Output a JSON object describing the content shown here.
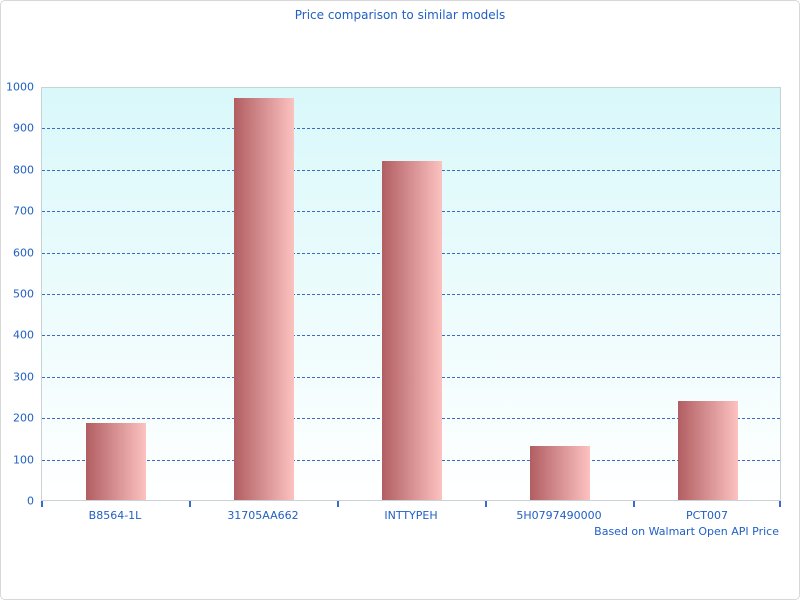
{
  "title": "Price comparison to similar models",
  "footer": "Based on Walmart Open API Price",
  "colors": {
    "text_blue": "#2160c4",
    "gridline_blue": "#3a6bca",
    "plot_border": "#c9d2d7",
    "plot_bg_top": "#d9f8fa",
    "plot_bg_bottom": "#ffffff",
    "bar_gradient_left": "#b15e62",
    "bar_gradient_right": "#fcc2c0",
    "window_border": "#d8d8d8"
  },
  "chart_data": {
    "type": "bar",
    "title": "Price comparison to similar models",
    "categories": [
      "B8564-1L",
      "31705AA662",
      "INTTYPEH",
      "5H0797490000",
      "PCT007"
    ],
    "values": [
      187,
      970,
      818,
      131,
      239
    ],
    "xlabel": "",
    "ylabel": "",
    "ylim": [
      0,
      1000
    ],
    "ytick_step": 100,
    "grid": "horizontal-dashed",
    "legend": "none",
    "bar_style": "horizontal pink gradient",
    "annotation": "Based on Walmart Open API Price"
  }
}
